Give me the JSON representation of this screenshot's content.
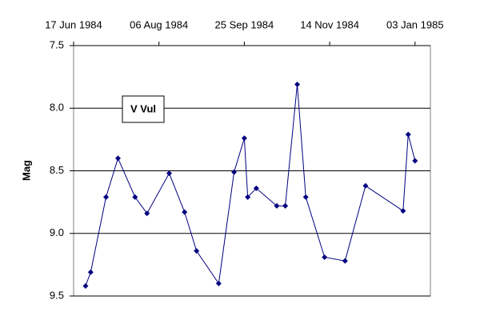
{
  "chart_data": {
    "type": "line",
    "y_label": "Mag",
    "x": [
      "1984-06-24",
      "1984-06-27",
      "1984-07-06",
      "1984-07-13",
      "1984-07-23",
      "1984-07-30",
      "1984-08-12",
      "1984-08-21",
      "1984-08-28",
      "1984-09-10",
      "1984-09-19",
      "1984-09-25",
      "1984-09-27",
      "1984-10-02",
      "1984-10-14",
      "1984-10-19",
      "1984-10-26",
      "1984-10-31",
      "1984-11-11",
      "1984-11-23",
      "1984-12-05",
      "1984-12-27",
      "1984-12-30",
      "1985-01-03"
    ],
    "series": [
      {
        "name": "V Vul",
        "color": "#000080",
        "values": [
          9.42,
          9.31,
          8.71,
          8.4,
          8.71,
          8.84,
          8.52,
          8.83,
          9.14,
          9.4,
          8.51,
          8.24,
          8.71,
          8.64,
          8.78,
          8.78,
          7.81,
          8.71,
          9.19,
          9.22,
          8.62,
          8.82,
          8.21,
          8.42
        ]
      }
    ],
    "xlim": [
      "1984-06-17",
      "1985-01-12"
    ],
    "xticks": [
      {
        "value": "1984-06-17",
        "label": "17 Jun 1984"
      },
      {
        "value": "1984-08-06",
        "label": "06 Aug 1984"
      },
      {
        "value": "1984-09-25",
        "label": "25 Sep 1984"
      },
      {
        "value": "1984-11-14",
        "label": "14 Nov 1984"
      },
      {
        "value": "1985-01-03",
        "label": "03 Jan 1985"
      }
    ],
    "ylim": [
      9.5,
      7.5
    ],
    "yticks": [
      7.5,
      {
        "value": 8.0,
        "label": "8.0"
      },
      8.5,
      {
        "value": 9.0,
        "label": "9.0"
      },
      9.5
    ],
    "y_inverted": true,
    "grid": true
  }
}
